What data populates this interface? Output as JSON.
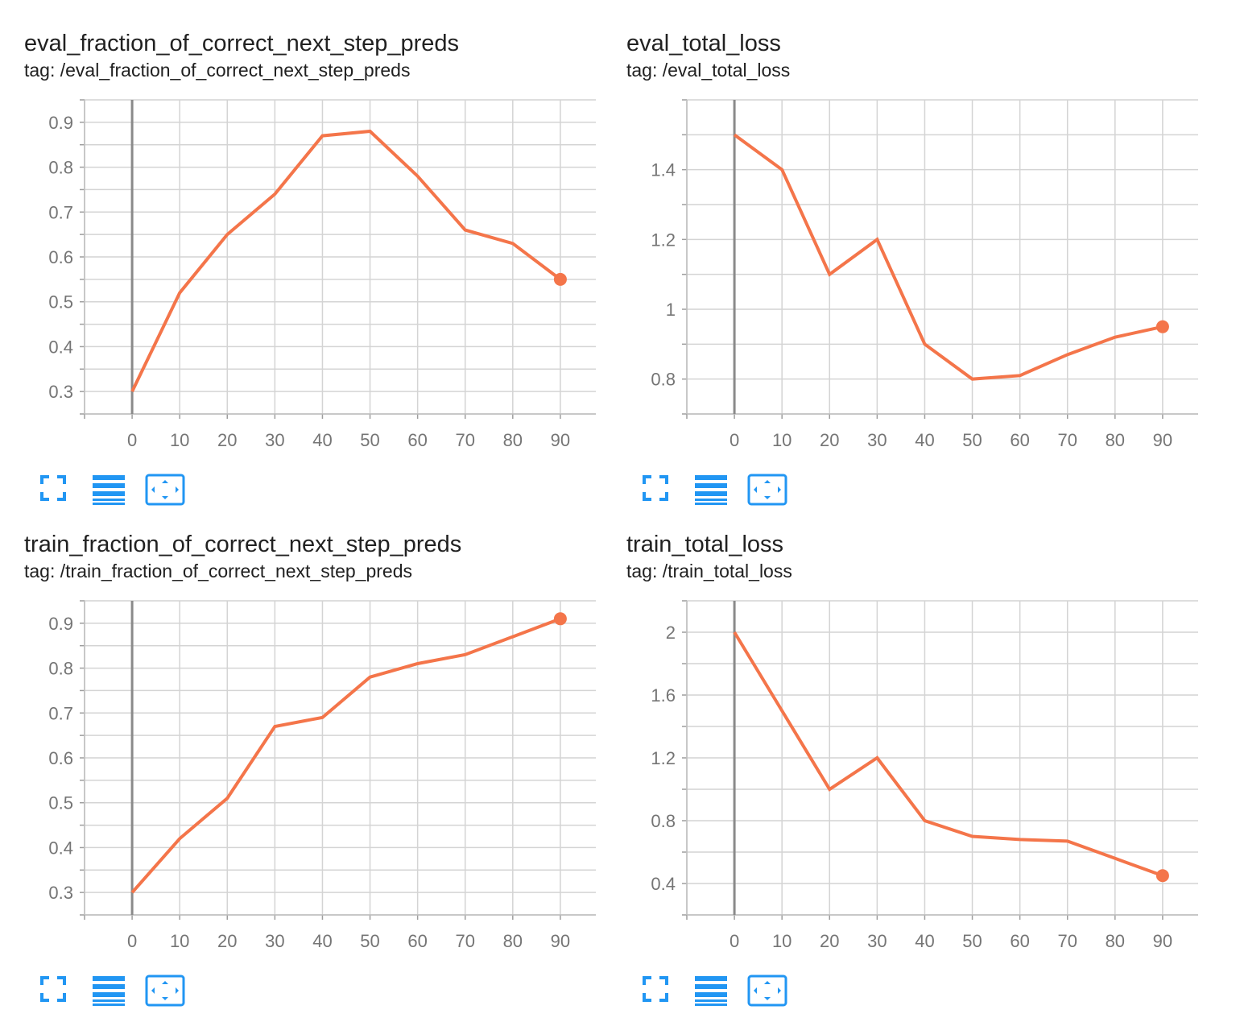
{
  "theme": {
    "line_color": "#f4754a",
    "grid_color": "#d4d4d4",
    "zero_axis_color": "#8a8a8a",
    "icon_color": "#2196f3"
  },
  "icons": {
    "fit_domain": "fullscreen-corners-icon",
    "toggle_log": "list-lines-icon",
    "zoom_reset": "fit-to-data-icon"
  },
  "cards": [
    {
      "title": "eval_fraction_of_correct_next_step_preds",
      "tag": "tag: /eval_fraction_of_correct_next_step_preds"
    },
    {
      "title": "eval_total_loss",
      "tag": "tag: /eval_total_loss"
    },
    {
      "title": "train_fraction_of_correct_next_step_preds",
      "tag": "tag: /train_fraction_of_correct_next_step_preds"
    },
    {
      "title": "train_total_loss",
      "tag": "tag: /train_total_loss"
    }
  ],
  "chart_data": [
    {
      "type": "line",
      "title": "eval_fraction_of_correct_next_step_preds",
      "x": [
        0,
        10,
        20,
        30,
        40,
        50,
        60,
        70,
        80,
        90
      ],
      "series": [
        {
          "values": [
            0.3,
            0.52,
            0.65,
            0.74,
            0.87,
            0.88,
            0.78,
            0.66,
            0.63,
            0.55
          ]
        }
      ],
      "xlim": [
        -10,
        100
      ],
      "ylim": [
        0.25,
        0.95
      ],
      "xticks": [
        0,
        10,
        20,
        30,
        40,
        50,
        60,
        70,
        80,
        90
      ],
      "xtick_labels": [
        "0",
        "10",
        "20",
        "30",
        "40",
        "50",
        "60",
        "70",
        "80",
        "90"
      ],
      "yticks": [
        0.3,
        0.4,
        0.5,
        0.6,
        0.7,
        0.8,
        0.9
      ],
      "ytick_labels": [
        "0.3",
        "0.4",
        "0.5",
        "0.6",
        "0.7",
        "0.8",
        "0.9"
      ],
      "minor_y_step": 0.05,
      "grid": true,
      "last_point_marker": true
    },
    {
      "type": "line",
      "title": "eval_total_loss",
      "x": [
        0,
        10,
        20,
        30,
        40,
        50,
        60,
        70,
        80,
        90
      ],
      "series": [
        {
          "values": [
            1.5,
            1.4,
            1.1,
            1.2,
            0.9,
            0.8,
            0.81,
            0.87,
            0.92,
            0.95
          ]
        }
      ],
      "xlim": [
        -10,
        100
      ],
      "ylim": [
        0.7,
        1.6
      ],
      "xticks": [
        0,
        10,
        20,
        30,
        40,
        50,
        60,
        70,
        80,
        90
      ],
      "xtick_labels": [
        "0",
        "10",
        "20",
        "30",
        "40",
        "50",
        "60",
        "70",
        "80",
        "90"
      ],
      "yticks": [
        0.8,
        1.0,
        1.2,
        1.4
      ],
      "ytick_labels": [
        "0.8",
        "1",
        "1.2",
        "1.4"
      ],
      "minor_y_step": 0.1,
      "grid": true,
      "last_point_marker": true
    },
    {
      "type": "line",
      "title": "train_fraction_of_correct_next_step_preds",
      "x": [
        0,
        10,
        20,
        30,
        40,
        50,
        60,
        70,
        80,
        90
      ],
      "series": [
        {
          "values": [
            0.3,
            0.42,
            0.51,
            0.67,
            0.69,
            0.78,
            0.81,
            0.83,
            0.87,
            0.91
          ]
        }
      ],
      "xlim": [
        -10,
        100
      ],
      "ylim": [
        0.25,
        0.95
      ],
      "xticks": [
        0,
        10,
        20,
        30,
        40,
        50,
        60,
        70,
        80,
        90
      ],
      "xtick_labels": [
        "0",
        "10",
        "20",
        "30",
        "40",
        "50",
        "60",
        "70",
        "80",
        "90"
      ],
      "yticks": [
        0.3,
        0.4,
        0.5,
        0.6,
        0.7,
        0.8,
        0.9
      ],
      "ytick_labels": [
        "0.3",
        "0.4",
        "0.5",
        "0.6",
        "0.7",
        "0.8",
        "0.9"
      ],
      "minor_y_step": 0.05,
      "grid": true,
      "last_point_marker": true
    },
    {
      "type": "line",
      "title": "train_total_loss",
      "x": [
        0,
        10,
        20,
        30,
        40,
        50,
        60,
        70,
        80,
        90
      ],
      "series": [
        {
          "values": [
            2.0,
            1.5,
            1.0,
            1.2,
            0.8,
            0.7,
            0.68,
            0.67,
            0.56,
            0.45
          ]
        }
      ],
      "xlim": [
        -10,
        100
      ],
      "ylim": [
        0.2,
        2.2
      ],
      "xticks": [
        0,
        10,
        20,
        30,
        40,
        50,
        60,
        70,
        80,
        90
      ],
      "xtick_labels": [
        "0",
        "10",
        "20",
        "30",
        "40",
        "50",
        "60",
        "70",
        "80",
        "90"
      ],
      "yticks": [
        0.4,
        0.8,
        1.2,
        1.6,
        2.0
      ],
      "ytick_labels": [
        "0.4",
        "0.8",
        "1.2",
        "1.6",
        "2"
      ],
      "minor_y_step": 0.2,
      "grid": true,
      "last_point_marker": true
    }
  ]
}
